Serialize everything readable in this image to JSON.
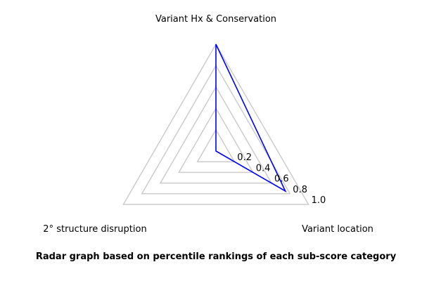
{
  "chart_data": {
    "type": "radar",
    "title": "Radar graph based on percentile rankings of each sub-score category",
    "axes": [
      "Variant Hx & Conservation",
      "Variant location",
      "2° structure disruption"
    ],
    "rticks": [
      "0.2",
      "0.4",
      "0.6",
      "0.8",
      "1.0"
    ],
    "rlim": [
      0,
      1
    ],
    "grid": true,
    "series": [
      {
        "values": [
          1.0,
          0.75,
          0.0
        ]
      }
    ],
    "colors": {
      "series": "#0000ff",
      "grid": "#cccccc"
    }
  }
}
